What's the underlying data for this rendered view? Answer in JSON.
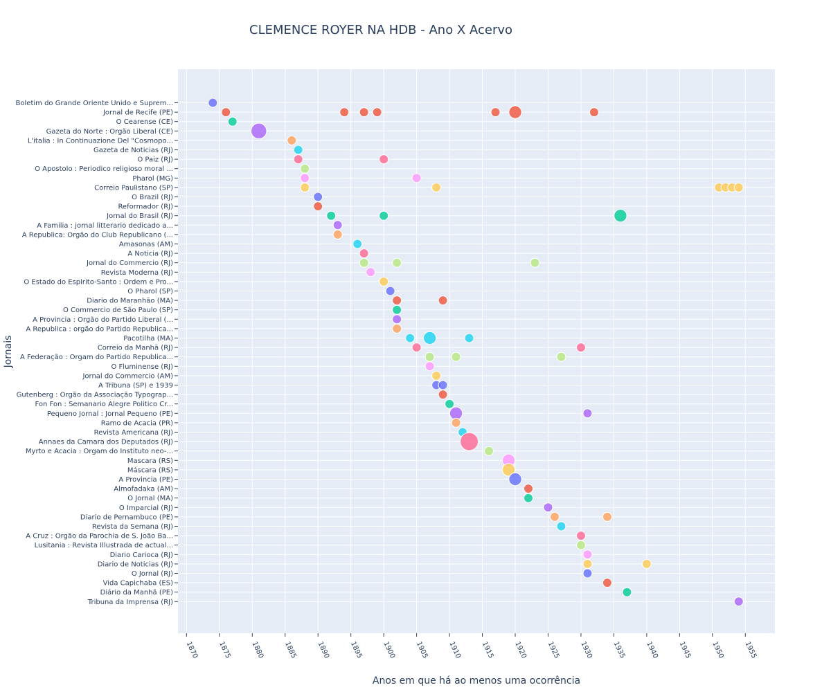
{
  "chart_data": {
    "type": "scatter",
    "title": "CLEMENCE ROYER NA HDB - Ano X Acervo",
    "xlabel": "Anos em que há ao menos uma ocorrência",
    "ylabel": "Jornais",
    "xlim": [
      1868.7,
      1959.5
    ],
    "x_ticks": [
      1870,
      1875,
      1880,
      1885,
      1890,
      1895,
      1900,
      1905,
      1910,
      1915,
      1920,
      1925,
      1930,
      1935,
      1940,
      1945,
      1950,
      1955
    ],
    "grid": true,
    "legend": "none",
    "categories": [
      "Boletim do Grande Oriente Unido e Suprem...",
      "Jornal de Recife (PE)",
      "O Cearense (CE)",
      "Gazeta do Norte : Orgão Liberal (CE)",
      "L'italia : In Continuazione Del \"Cosmopo...",
      "Gazeta de Noticias (RJ)",
      "O Paiz (RJ)",
      "O Apostolo : Periodico religioso  moral ...",
      "Pharol (MG)",
      "Correio Paulistano (SP)",
      "O Brazil (RJ)",
      "Reformador (RJ)",
      "Jornal do Brasil (RJ)",
      "A Familia : jornal litterario dedicado a...",
      "A Republica: Orgão do Club Republicano (...",
      "Amasonas (AM)",
      "A Noticia (RJ)",
      "Jornal do Commercio (RJ)",
      "Revista Moderna (RJ)",
      "O Estado do Espirito-Santo : Ordem e Pro...",
      "O Pharol (SP)",
      "Diario do Maranhão (MA)",
      "O Commercio de São Paulo (SP)",
      "A Provincia : Orgão do Partido Liberal (...",
      "A Republica : orgão do Partido Republica...",
      "Pacotilha (MA)",
      "Correio da Manhã (RJ)",
      "A Federação : Orgam do Partido Republica...",
      "O Fluminense (RJ)",
      "Jornal do Commercio (AM)",
      "A Tribuna (SP)  e 1939",
      "Gutenberg : Orgão da Associação Typograp...",
      "Fon Fon : Semanario Alegre  Politico  Cr...",
      "Pequeno Jornal : Jornal Pequeno (PE)",
      "Ramo de Acacia (PR)",
      "Revista Americana (RJ)",
      "Annaes da Camara dos Deputados (RJ)",
      "Myrto e Acacia : Orgam do Instituto neo-...",
      "Mascara (RS)",
      "Máscara (RS)",
      "A Provincia (PE)",
      "Almofadaka (AM)",
      "O Jornal (MA)",
      "O Imparcial (RJ)",
      "Diario de Pernambuco (PE)",
      "Revista da Semana (RJ)",
      "A Cruz : Orgão da Parochia de S. João Ba...",
      "Lusitania : Revista Illustrada de actual...",
      "Diario Carioca (RJ)",
      "Diario de Noticias (RJ)",
      "O Jornal (RJ)",
      "Vida Capichaba (ES)",
      "Diário da Manhã (PE)",
      "Tribuna da Imprensa (RJ)"
    ],
    "palette": [
      "#636efa",
      "#ef553b",
      "#00cc96",
      "#ab63fa",
      "#ffa15a",
      "#19d3f3",
      "#ff6692",
      "#b6e880",
      "#ff97ff",
      "#fecb52"
    ],
    "points": [
      [
        0,
        1874,
        1
      ],
      [
        1,
        1876,
        1
      ],
      [
        1,
        1894,
        1
      ],
      [
        1,
        1897,
        1
      ],
      [
        1,
        1899,
        1
      ],
      [
        1,
        1917,
        1
      ],
      [
        1,
        1920,
        2
      ],
      [
        1,
        1932,
        1
      ],
      [
        2,
        1877,
        1
      ],
      [
        3,
        1881,
        3
      ],
      [
        4,
        1886,
        1
      ],
      [
        5,
        1887,
        1
      ],
      [
        6,
        1887,
        1
      ],
      [
        6,
        1900,
        1
      ],
      [
        7,
        1888,
        1
      ],
      [
        8,
        1888,
        1
      ],
      [
        8,
        1905,
        1
      ],
      [
        9,
        1888,
        1
      ],
      [
        9,
        1908,
        1
      ],
      [
        9,
        1951,
        1
      ],
      [
        9,
        1952,
        1
      ],
      [
        9,
        1953,
        1
      ],
      [
        9,
        1954,
        1
      ],
      [
        10,
        1890,
        1
      ],
      [
        11,
        1890,
        1
      ],
      [
        12,
        1892,
        1
      ],
      [
        12,
        1900,
        1
      ],
      [
        12,
        1936,
        2
      ],
      [
        13,
        1893,
        1
      ],
      [
        14,
        1893,
        1
      ],
      [
        15,
        1896,
        1
      ],
      [
        16,
        1897,
        1
      ],
      [
        17,
        1897,
        1
      ],
      [
        17,
        1902,
        1
      ],
      [
        17,
        1923,
        1
      ],
      [
        18,
        1898,
        1
      ],
      [
        19,
        1900,
        1
      ],
      [
        20,
        1901,
        1
      ],
      [
        21,
        1902,
        1
      ],
      [
        21,
        1909,
        1
      ],
      [
        22,
        1902,
        1
      ],
      [
        23,
        1902,
        1
      ],
      [
        24,
        1902,
        1
      ],
      [
        25,
        1904,
        1
      ],
      [
        25,
        1907,
        2
      ],
      [
        25,
        1913,
        1
      ],
      [
        26,
        1905,
        1
      ],
      [
        26,
        1930,
        1
      ],
      [
        27,
        1907,
        1
      ],
      [
        27,
        1911,
        1
      ],
      [
        27,
        1927,
        1
      ],
      [
        28,
        1907,
        1
      ],
      [
        29,
        1908,
        1
      ],
      [
        30,
        1908,
        1
      ],
      [
        30,
        1909,
        1
      ],
      [
        31,
        1909,
        1
      ],
      [
        32,
        1910,
        1
      ],
      [
        33,
        1911,
        2
      ],
      [
        33,
        1931,
        1
      ],
      [
        34,
        1911,
        1
      ],
      [
        35,
        1912,
        1
      ],
      [
        36,
        1913,
        4
      ],
      [
        37,
        1916,
        1
      ],
      [
        38,
        1919,
        2
      ],
      [
        39,
        1919,
        2
      ],
      [
        40,
        1920,
        2
      ],
      [
        41,
        1922,
        1
      ],
      [
        42,
        1922,
        1
      ],
      [
        43,
        1925,
        1
      ],
      [
        44,
        1926,
        1
      ],
      [
        44,
        1934,
        1
      ],
      [
        45,
        1927,
        1
      ],
      [
        46,
        1930,
        1
      ],
      [
        47,
        1930,
        1
      ],
      [
        48,
        1931,
        1
      ],
      [
        49,
        1931,
        1
      ],
      [
        49,
        1940,
        1
      ],
      [
        50,
        1931,
        1
      ],
      [
        51,
        1934,
        1
      ],
      [
        52,
        1937,
        1
      ],
      [
        53,
        1954,
        1
      ]
    ]
  }
}
